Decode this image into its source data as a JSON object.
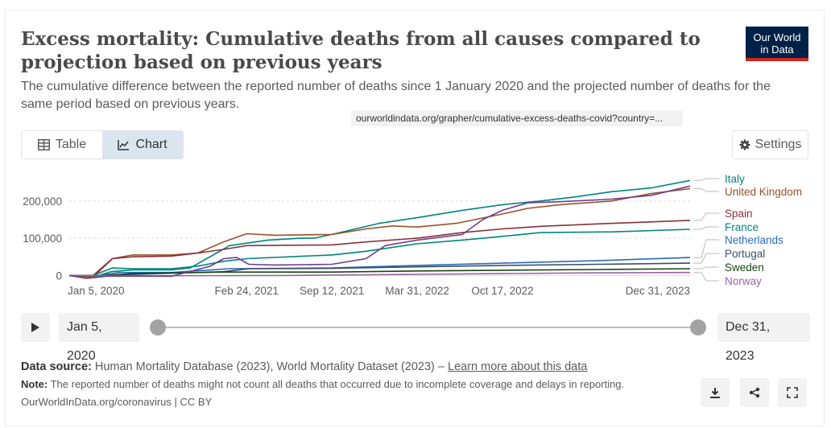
{
  "header": {
    "title": "Excess mortality: Cumulative deaths from all causes compared to projection based on previous years",
    "subtitle": "The cumulative difference between the reported number of deaths since 1 January 2020 and the projected number of deaths for the same period based on previous years.",
    "logo_line1": "Our World",
    "logo_line2": "in Data",
    "url_tooltip": "ourworldindata.org/grapher/cumulative-excess-deaths-covid?country=..."
  },
  "tabs": {
    "table_label": "Table",
    "chart_label": "Chart"
  },
  "settings_label": "Settings",
  "timeline": {
    "start_label": "Jan 5, 2020",
    "end_label": "Dec 31, 2023"
  },
  "footer": {
    "source_prefix": "Data source:",
    "source_text": "Human Mortality Database (2023), World Mortality Dataset (2023) –",
    "source_link": "Learn more about this data",
    "note_prefix": "Note:",
    "note_text": "The reported number of deaths might not count all deaths that occurred due to incomplete coverage and delays in reporting.",
    "citation": "OurWorldInData.org/coronavirus | CC BY"
  },
  "icons": {
    "table": "table-icon",
    "chart": "line-chart-icon",
    "settings": "gear-icon",
    "play": "play-icon",
    "download": "download-icon",
    "share": "share-icon",
    "fullscreen": "fullscreen-icon"
  },
  "chart_data": {
    "type": "line",
    "title": "Excess mortality: Cumulative deaths from all causes compared to projection based on previous years",
    "ylim": [
      -10000,
      260000
    ],
    "xlim": [
      "2020-01-05",
      "2023-12-31"
    ],
    "yticks": [
      0,
      100000,
      200000
    ],
    "ytick_labels": [
      "0",
      "100,000",
      "200,000"
    ],
    "xticks": [
      "2020-01-05",
      "2021-02-24",
      "2021-09-12",
      "2022-03-31",
      "2022-10-17",
      "2023-12-31"
    ],
    "xtick_labels": [
      "Jan 5, 2020",
      "Feb 24, 2021",
      "Sep 12, 2021",
      "Mar 31, 2022",
      "Oct 17, 2022",
      "Dec 31, 2023"
    ],
    "grid": "horizontal-dashed",
    "legend": "right",
    "series": [
      {
        "name": "Italy",
        "color": "#00847e",
        "points": [
          [
            "2020-01-05",
            0
          ],
          [
            "2020-03-01",
            -5000
          ],
          [
            "2020-04-12",
            10000
          ],
          [
            "2020-06-01",
            15000
          ],
          [
            "2020-09-01",
            15000
          ],
          [
            "2020-10-15",
            20000
          ],
          [
            "2021-01-15",
            80000
          ],
          [
            "2021-04-15",
            95000
          ],
          [
            "2021-07-01",
            100000
          ],
          [
            "2021-08-01",
            100000
          ],
          [
            "2021-09-12",
            110000
          ],
          [
            "2022-01-01",
            140000
          ],
          [
            "2022-03-31",
            155000
          ],
          [
            "2022-07-15",
            175000
          ],
          [
            "2022-10-17",
            190000
          ],
          [
            "2023-01-15",
            200000
          ],
          [
            "2023-04-01",
            210000
          ],
          [
            "2023-07-01",
            225000
          ],
          [
            "2023-10-01",
            235000
          ],
          [
            "2023-12-31",
            255000
          ]
        ]
      },
      {
        "name": "United Kingdom",
        "color": "#9a5129",
        "points": [
          [
            "2020-01-05",
            0
          ],
          [
            "2020-03-01",
            -5000
          ],
          [
            "2020-04-15",
            45000
          ],
          [
            "2020-06-01",
            55000
          ],
          [
            "2020-09-01",
            55000
          ],
          [
            "2020-11-01",
            60000
          ],
          [
            "2021-01-01",
            90000
          ],
          [
            "2021-02-24",
            112000
          ],
          [
            "2021-05-01",
            108000
          ],
          [
            "2021-09-12",
            110000
          ],
          [
            "2021-12-01",
            125000
          ],
          [
            "2022-02-01",
            133000
          ],
          [
            "2022-03-31",
            130000
          ],
          [
            "2022-07-01",
            140000
          ],
          [
            "2022-10-17",
            165000
          ],
          [
            "2022-12-15",
            180000
          ],
          [
            "2023-03-01",
            190000
          ],
          [
            "2023-07-01",
            200000
          ],
          [
            "2023-10-01",
            220000
          ],
          [
            "2023-12-31",
            233000
          ]
        ]
      },
      {
        "name": "Spain",
        "color": "#883039",
        "points": [
          [
            "2020-01-05",
            0
          ],
          [
            "2020-03-01",
            0
          ],
          [
            "2020-04-15",
            45000
          ],
          [
            "2020-06-01",
            50000
          ],
          [
            "2020-09-01",
            52000
          ],
          [
            "2020-11-01",
            60000
          ],
          [
            "2021-01-01",
            70000
          ],
          [
            "2021-02-24",
            80000
          ],
          [
            "2021-09-12",
            82000
          ],
          [
            "2021-12-01",
            90000
          ],
          [
            "2022-03-31",
            100000
          ],
          [
            "2022-07-15",
            115000
          ],
          [
            "2022-10-17",
            125000
          ],
          [
            "2023-01-15",
            132000
          ],
          [
            "2023-07-01",
            140000
          ],
          [
            "2023-12-31",
            148000
          ]
        ]
      },
      {
        "name": "France",
        "color": "#00847e",
        "points": [
          [
            "2020-01-05",
            0
          ],
          [
            "2020-03-01",
            0
          ],
          [
            "2020-04-15",
            20000
          ],
          [
            "2020-06-01",
            18000
          ],
          [
            "2020-09-01",
            18000
          ],
          [
            "2020-11-01",
            25000
          ],
          [
            "2021-01-01",
            38000
          ],
          [
            "2021-02-24",
            45000
          ],
          [
            "2021-09-12",
            55000
          ],
          [
            "2021-12-01",
            65000
          ],
          [
            "2022-03-31",
            85000
          ],
          [
            "2022-07-15",
            95000
          ],
          [
            "2022-10-17",
            105000
          ],
          [
            "2023-01-15",
            115000
          ],
          [
            "2023-07-01",
            117000
          ],
          [
            "2023-12-31",
            124000
          ]
        ]
      },
      {
        "name": "Netherlands",
        "color": "#286bbb",
        "points": [
          [
            "2020-01-05",
            0
          ],
          [
            "2020-03-15",
            0
          ],
          [
            "2020-05-01",
            8000
          ],
          [
            "2020-09-01",
            8000
          ],
          [
            "2021-01-15",
            18000
          ],
          [
            "2021-09-12",
            20000
          ],
          [
            "2022-03-31",
            27000
          ],
          [
            "2022-10-17",
            33000
          ],
          [
            "2023-06-01",
            40000
          ],
          [
            "2023-12-31",
            48000
          ]
        ]
      },
      {
        "name": "Portugal",
        "color": "#3c4e66",
        "points": [
          [
            "2020-01-05",
            0
          ],
          [
            "2020-03-15",
            0
          ],
          [
            "2020-08-01",
            5000
          ],
          [
            "2021-01-01",
            10000
          ],
          [
            "2021-03-01",
            18000
          ],
          [
            "2021-09-12",
            19000
          ],
          [
            "2022-03-31",
            23000
          ],
          [
            "2022-10-17",
            27000
          ],
          [
            "2023-06-01",
            30000
          ],
          [
            "2023-12-31",
            33000
          ]
        ]
      },
      {
        "name": "Sweden",
        "color": "#18470f",
        "points": [
          [
            "2020-01-05",
            0
          ],
          [
            "2020-03-15",
            -1000
          ],
          [
            "2020-06-01",
            5000
          ],
          [
            "2021-01-01",
            9000
          ],
          [
            "2021-09-12",
            9000
          ],
          [
            "2022-03-31",
            12000
          ],
          [
            "2022-10-17",
            14000
          ],
          [
            "2023-06-01",
            16000
          ],
          [
            "2023-12-31",
            18000
          ]
        ]
      },
      {
        "name": "Norway",
        "color": "#9a61a5",
        "points": [
          [
            "2020-01-05",
            0
          ],
          [
            "2020-06-01",
            -1000
          ],
          [
            "2021-06-01",
            0
          ],
          [
            "2022-03-31",
            3000
          ],
          [
            "2022-10-17",
            5000
          ],
          [
            "2023-06-01",
            7000
          ],
          [
            "2023-12-31",
            8000
          ]
        ]
      },
      {
        "name": "",
        "color": "#6d3e91",
        "points": [
          [
            "2020-01-05",
            0
          ],
          [
            "2020-02-15",
            -8000
          ],
          [
            "2020-04-01",
            -2000
          ],
          [
            "2020-09-01",
            -2000
          ],
          [
            "2020-12-01",
            25000
          ],
          [
            "2021-01-01",
            45000
          ],
          [
            "2021-02-01",
            48000
          ],
          [
            "2021-03-01",
            30000
          ],
          [
            "2021-05-01",
            28000
          ],
          [
            "2021-09-12",
            30000
          ],
          [
            "2021-12-01",
            45000
          ],
          [
            "2022-01-15",
            80000
          ],
          [
            "2022-03-31",
            95000
          ],
          [
            "2022-07-15",
            110000
          ],
          [
            "2022-09-01",
            150000
          ],
          [
            "2022-10-17",
            175000
          ],
          [
            "2022-12-15",
            195000
          ],
          [
            "2023-03-01",
            198000
          ],
          [
            "2023-07-01",
            205000
          ],
          [
            "2023-10-01",
            215000
          ],
          [
            "2023-12-31",
            240000
          ]
        ]
      }
    ]
  }
}
